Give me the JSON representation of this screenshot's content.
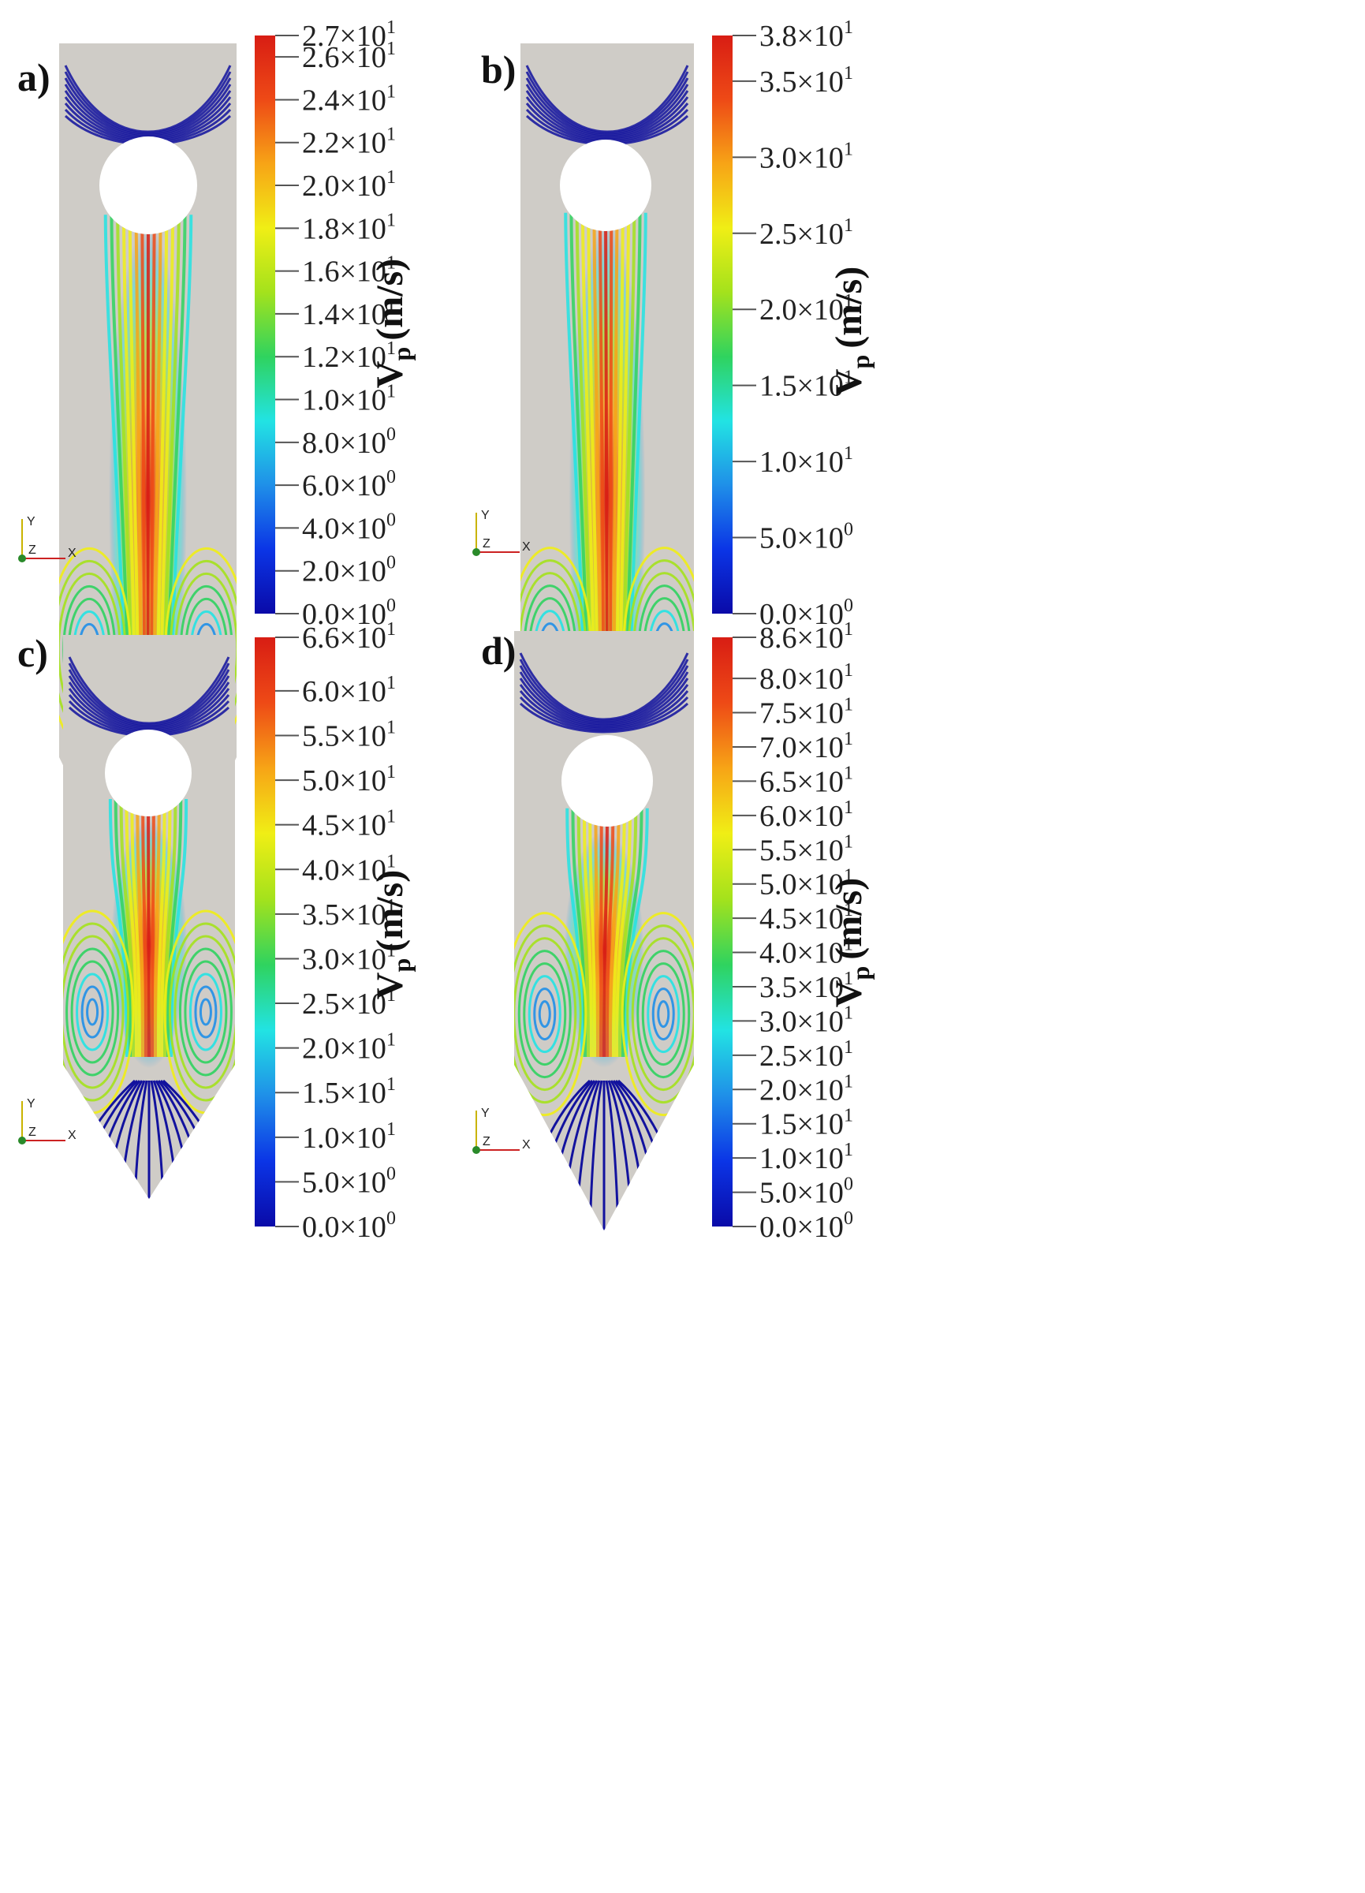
{
  "colorbar_title": "V",
  "colorbar_sub": "p",
  "colorbar_unit": "(m/s)",
  "axes_triad": {
    "y": "Y",
    "z": "Z",
    "x": "X"
  },
  "colors": {
    "domain": "#cfccc7",
    "jet_stops": [
      "#0a0aa8",
      "#0b35e6",
      "#1f8fe8",
      "#22e3e3",
      "#2fd35f",
      "#a4e21c",
      "#f0ee15",
      "#f7a416",
      "#ee4a16",
      "#d81d14"
    ]
  },
  "panels": [
    {
      "label": "a)",
      "max_value": 27,
      "vmax": "2.7×10",
      "vmax_exp": "1",
      "ticks": [
        {
          "v": 0,
          "m": "0.0×10",
          "e": "0"
        },
        {
          "v": 2,
          "m": "2.0×10",
          "e": "0"
        },
        {
          "v": 4,
          "m": "4.0×10",
          "e": "0"
        },
        {
          "v": 6,
          "m": "6.0×10",
          "e": "0"
        },
        {
          "v": 8,
          "m": "8.0×10",
          "e": "0"
        },
        {
          "v": 10,
          "m": "1.0×10",
          "e": "1"
        },
        {
          "v": 12,
          "m": "1.2×10",
          "e": "1"
        },
        {
          "v": 14,
          "m": "1.4×10",
          "e": "1"
        },
        {
          "v": 16,
          "m": "1.6×10",
          "e": "1"
        },
        {
          "v": 18,
          "m": "1.8×10",
          "e": "1"
        },
        {
          "v": 20,
          "m": "2.0×10",
          "e": "1"
        },
        {
          "v": 22,
          "m": "2.2×10",
          "e": "1"
        },
        {
          "v": 24,
          "m": "2.4×10",
          "e": "1"
        },
        {
          "v": 26,
          "m": "2.6×10",
          "e": "1"
        }
      ]
    },
    {
      "label": "b)",
      "max_value": 38,
      "vmax": "3.8×10",
      "vmax_exp": "1",
      "ticks": [
        {
          "v": 0,
          "m": "0.0×10",
          "e": "0"
        },
        {
          "v": 5,
          "m": "5.0×10",
          "e": "0"
        },
        {
          "v": 10,
          "m": "1.0×10",
          "e": "1"
        },
        {
          "v": 15,
          "m": "1.5×10",
          "e": "1"
        },
        {
          "v": 20,
          "m": "2.0×10",
          "e": "1"
        },
        {
          "v": 25,
          "m": "2.5×10",
          "e": "1"
        },
        {
          "v": 30,
          "m": "3.0×10",
          "e": "1"
        },
        {
          "v": 35,
          "m": "3.5×10",
          "e": "1"
        }
      ]
    },
    {
      "label": "c)",
      "max_value": 66,
      "vmax": "6.6×10",
      "vmax_exp": "1",
      "ticks": [
        {
          "v": 0,
          "m": "0.0×10",
          "e": "0"
        },
        {
          "v": 5,
          "m": "5.0×10",
          "e": "0"
        },
        {
          "v": 10,
          "m": "1.0×10",
          "e": "1"
        },
        {
          "v": 15,
          "m": "1.5×10",
          "e": "1"
        },
        {
          "v": 20,
          "m": "2.0×10",
          "e": "1"
        },
        {
          "v": 25,
          "m": "2.5×10",
          "e": "1"
        },
        {
          "v": 30,
          "m": "3.0×10",
          "e": "1"
        },
        {
          "v": 35,
          "m": "3.5×10",
          "e": "1"
        },
        {
          "v": 40,
          "m": "4.0×10",
          "e": "1"
        },
        {
          "v": 45,
          "m": "4.5×10",
          "e": "1"
        },
        {
          "v": 50,
          "m": "5.0×10",
          "e": "1"
        },
        {
          "v": 55,
          "m": "5.5×10",
          "e": "1"
        },
        {
          "v": 60,
          "m": "6.0×10",
          "e": "1"
        }
      ]
    },
    {
      "label": "d)",
      "max_value": 86,
      "vmax": "8.6×10",
      "vmax_exp": "1",
      "ticks": [
        {
          "v": 0,
          "m": "0.0×10",
          "e": "0"
        },
        {
          "v": 5,
          "m": "5.0×10",
          "e": "0"
        },
        {
          "v": 10,
          "m": "1.0×10",
          "e": "1"
        },
        {
          "v": 15,
          "m": "1.5×10",
          "e": "1"
        },
        {
          "v": 20,
          "m": "2.0×10",
          "e": "1"
        },
        {
          "v": 25,
          "m": "2.5×10",
          "e": "1"
        },
        {
          "v": 30,
          "m": "3.0×10",
          "e": "1"
        },
        {
          "v": 35,
          "m": "3.5×10",
          "e": "1"
        },
        {
          "v": 40,
          "m": "4.0×10",
          "e": "1"
        },
        {
          "v": 45,
          "m": "4.5×10",
          "e": "1"
        },
        {
          "v": 50,
          "m": "5.0×10",
          "e": "1"
        },
        {
          "v": 55,
          "m": "5.5×10",
          "e": "1"
        },
        {
          "v": 60,
          "m": "6.0×10",
          "e": "1"
        },
        {
          "v": 65,
          "m": "6.5×10",
          "e": "1"
        },
        {
          "v": 70,
          "m": "7.0×10",
          "e": "1"
        },
        {
          "v": 75,
          "m": "7.5×10",
          "e": "1"
        },
        {
          "v": 80,
          "m": "8.0×10",
          "e": "1"
        }
      ]
    }
  ]
}
